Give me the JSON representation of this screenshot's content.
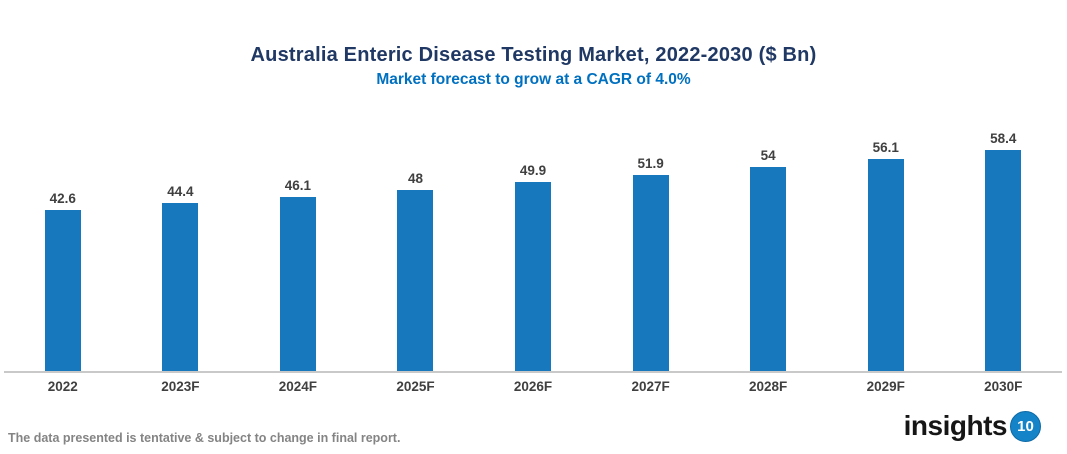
{
  "header": {
    "title": "Australia Enteric Disease Testing Market, 2022-2030 ($ Bn)",
    "subtitle": "Market forecast to grow at a CAGR of 4.0%"
  },
  "chart_data": {
    "type": "bar",
    "title": "Australia Enteric Disease Testing Market, 2022-2030 ($ Bn)",
    "subtitle": "Market forecast to grow at a CAGR of 4.0%",
    "categories": [
      "2022",
      "2023F",
      "2024F",
      "2025F",
      "2026F",
      "2027F",
      "2028F",
      "2029F",
      "2030F"
    ],
    "values": [
      42.6,
      44.4,
      46.1,
      48,
      49.9,
      51.9,
      54,
      56.1,
      58.4
    ],
    "value_labels": [
      "42.6",
      "44.4",
      "46.1",
      "48",
      "49.9",
      "51.9",
      "54",
      "56.1",
      "58.4"
    ],
    "xlabel": "",
    "ylabel": "",
    "ylim": [
      0,
      65
    ],
    "grid": false,
    "legend": "none",
    "bar_color": "#1878BE",
    "value_label_color": "#404040",
    "axis_line_color": "#C9C9C9"
  },
  "footer": {
    "note": "The data presented is tentative & subject to change in final report.",
    "logo_text": "insights",
    "logo_badge": "10"
  },
  "colors": {
    "title": "#1F3864",
    "subtitle": "#0070C0",
    "bar": "#1878BE",
    "axis_text": "#404040",
    "note_text": "#848484",
    "logo_circle": "#1583C7"
  }
}
